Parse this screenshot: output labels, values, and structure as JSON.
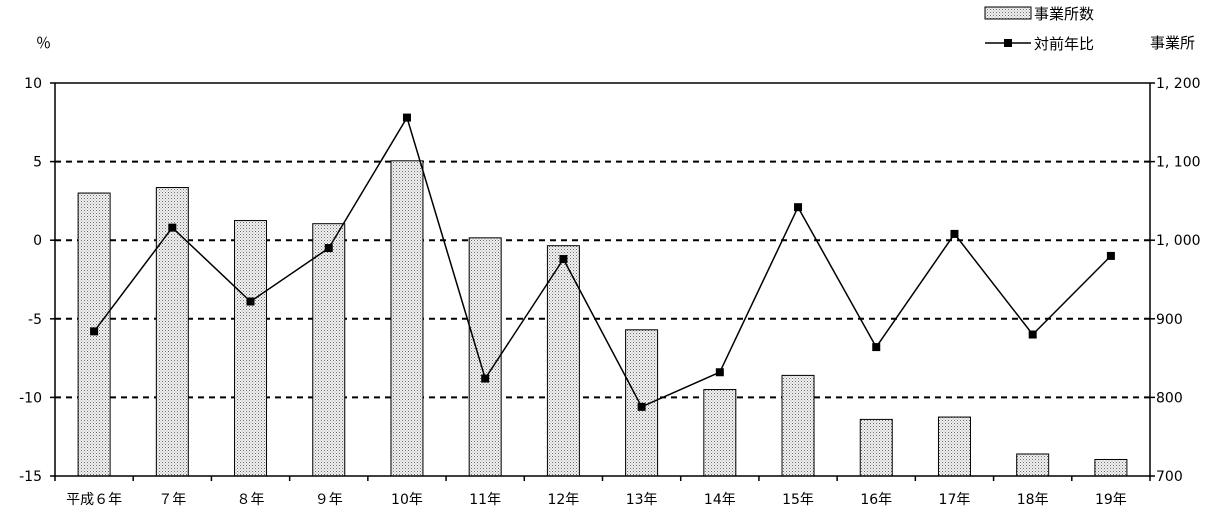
{
  "chart_data": {
    "type": "bar",
    "title": "",
    "categories": [
      "平成６年",
      "７年",
      "８年",
      "９年",
      "10年",
      "11年",
      "12年",
      "13年",
      "14年",
      "15年",
      "16年",
      "17年",
      "18年",
      "19年"
    ],
    "series": [
      {
        "name": "事業所数",
        "type": "bar",
        "axis": "right",
        "values": [
          1060,
          1067,
          1025,
          1021,
          1101,
          1003,
          993,
          886,
          810,
          828,
          772,
          775,
          728,
          721
        ],
        "color": "#e0e0e0"
      },
      {
        "name": "対前年比",
        "type": "line",
        "axis": "left",
        "values": [
          -5.8,
          0.8,
          -3.9,
          -0.5,
          7.8,
          -8.8,
          -1.2,
          -10.6,
          -8.4,
          2.1,
          -6.8,
          0.4,
          -6.0,
          -1.0
        ],
        "color": "#000000"
      }
    ],
    "left_axis": {
      "unit": "％",
      "ylim": [
        -15,
        10
      ],
      "ticks": [
        "10",
        "5",
        "0",
        "-5",
        "-10",
        "-15"
      ]
    },
    "right_axis": {
      "unit": "事業所",
      "ylim": [
        700,
        1200
      ],
      "ticks": [
        "1, 200",
        "1, 100",
        "1, 000",
        "900",
        "800",
        "700"
      ]
    },
    "grid": "horizontal-dashed",
    "legend": {
      "position": "top-right",
      "entries": [
        "事業所数",
        "対前年比"
      ]
    }
  }
}
